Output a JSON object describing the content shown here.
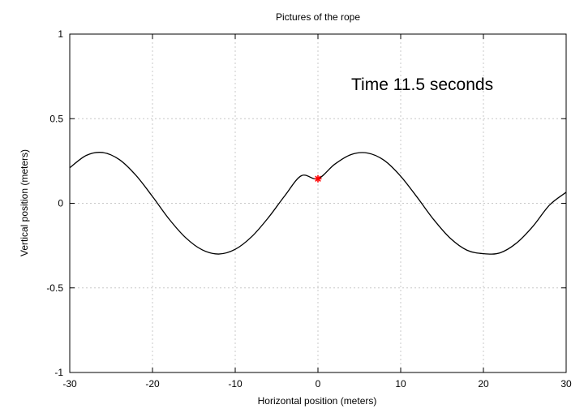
{
  "chart_data": {
    "type": "line",
    "title": "Pictures of the rope",
    "xlabel": "Horizontal position (meters)",
    "ylabel": "Vertical position (meters)",
    "xlim": [
      -30,
      30
    ],
    "ylim": [
      -1,
      1
    ],
    "xticks": [
      -30,
      -20,
      -10,
      0,
      10,
      20,
      30
    ],
    "yticks": [
      -1,
      -0.5,
      0,
      0.5,
      1
    ],
    "xtick_labels": [
      "-30",
      "-20",
      "-10",
      "0",
      "10",
      "20",
      "30"
    ],
    "ytick_labels": [
      "-1",
      "-0.5",
      "0",
      "0.5",
      "1"
    ],
    "grid": true,
    "annotation": "Time 11.5 seconds",
    "series": [
      {
        "color": "#000000",
        "points": [
          [
            -30,
            0.21
          ],
          [
            -28,
            0.283
          ],
          [
            -26,
            0.3
          ],
          [
            -24,
            0.258
          ],
          [
            -22,
            0.165
          ],
          [
            -20,
            0.04
          ],
          [
            -18,
            -0.093
          ],
          [
            -16,
            -0.203
          ],
          [
            -14,
            -0.275
          ],
          [
            -12,
            -0.3
          ],
          [
            -10,
            -0.272
          ],
          [
            -8,
            -0.197
          ],
          [
            -6,
            -0.085
          ],
          [
            -4,
            0.045
          ],
          [
            -2,
            0.163
          ],
          [
            0,
            0.145
          ],
          [
            2,
            0.23
          ],
          [
            4,
            0.288
          ],
          [
            6,
            0.297
          ],
          [
            8,
            0.254
          ],
          [
            10,
            0.16
          ],
          [
            12,
            0.035
          ],
          [
            14,
            -0.097
          ],
          [
            16,
            -0.207
          ],
          [
            18,
            -0.277
          ],
          [
            20,
            -0.298
          ],
          [
            22,
            -0.293
          ],
          [
            24,
            -0.235
          ],
          [
            26,
            -0.135
          ],
          [
            28,
            -0.01
          ],
          [
            30,
            0.065
          ]
        ]
      }
    ],
    "marker": {
      "x": 0,
      "y": 0.145,
      "color": "#ff0000",
      "shape": "star"
    }
  }
}
